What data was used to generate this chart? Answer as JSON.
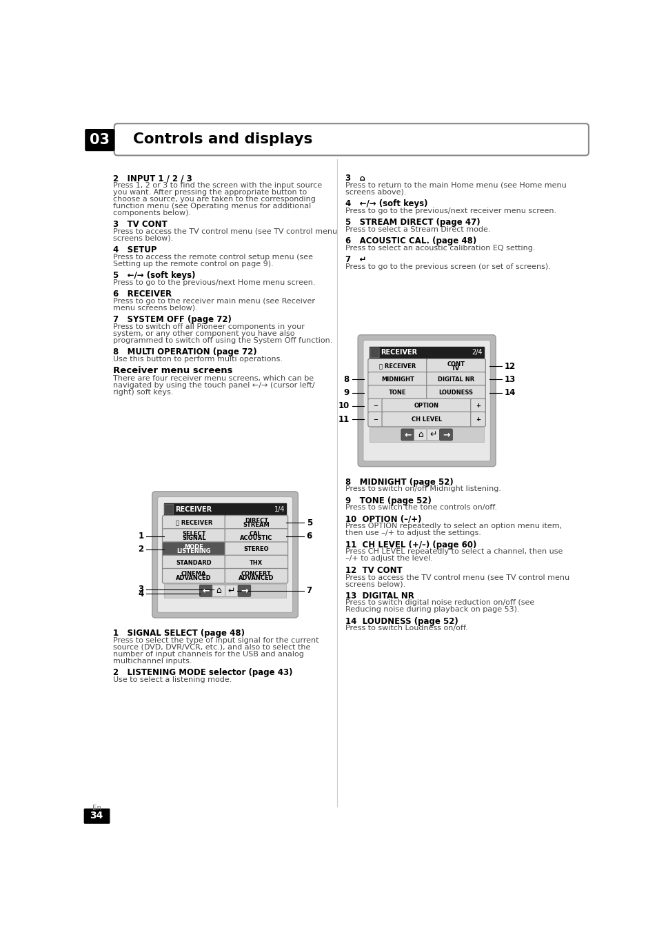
{
  "title": "Controls and displays",
  "chapter": "03",
  "page_num": "34",
  "page_sub": "En",
  "bg_color": "#ffffff",
  "left_items": [
    [
      "h2",
      "2   INPUT 1 / 2 / 3"
    ],
    [
      "body",
      "Press 1, 2 or 3 to find the screen with the input source\nyou want. After pressing the appropriate button to\nchoose a source, you are taken to the corresponding\nfunction menu (see Operating menus for additional\ncomponents below)."
    ],
    [
      "h2",
      "3   TV CONT"
    ],
    [
      "body",
      "Press to access the TV control menu (see TV control menu\nscreens below)."
    ],
    [
      "h2",
      "4   SETUP"
    ],
    [
      "body",
      "Press to access the remote control setup menu (see\nSetting up the remote control on page 9)."
    ],
    [
      "h2",
      "5   ←/→ (soft keys)"
    ],
    [
      "body",
      "Press to go to the previous/next Home menu screen."
    ],
    [
      "h2",
      "6   RECEIVER"
    ],
    [
      "body",
      "Press to go to the receiver main menu (see Receiver\nmenu screens below)."
    ],
    [
      "h2",
      "7   SYSTEM OFF (page 72)"
    ],
    [
      "body",
      "Press to switch off all Pioneer components in your\nsystem, or any other component you have also\nprogrammed to switch off using the System Off function."
    ],
    [
      "h2",
      "8   MULTI OPERATION (page 72)"
    ],
    [
      "body",
      "Use this button to perform multi operations."
    ],
    [
      "sub",
      "Receiver menu screens"
    ],
    [
      "body",
      "There are four receiver menu screens, which can be\nnavigated by using the touch panel ←/→ (cursor left/\nright) soft keys."
    ]
  ],
  "right_items": [
    [
      "h2",
      "3   ⌂"
    ],
    [
      "body",
      "Press to return to the main Home menu (see Home menu\nscreens above)."
    ],
    [
      "h2",
      "4   ←/→ (soft keys)"
    ],
    [
      "body",
      "Press to go to the previous/next receiver menu screen."
    ],
    [
      "h2",
      "5   STREAM DIRECT (page 47)"
    ],
    [
      "body",
      "Press to select a Stream Direct mode."
    ],
    [
      "h2",
      "6   ACOUSTIC CAL. (page 48)"
    ],
    [
      "body",
      "Press to select an acoustic calibration EQ setting."
    ],
    [
      "h2",
      "7   ↵"
    ],
    [
      "body",
      "Press to go to the previous screen (or set of screens)."
    ]
  ],
  "bottom_left_items": [
    [
      "h2",
      "1   SIGNAL SELECT (page 48)"
    ],
    [
      "body",
      "Press to select the type of input signal for the current\nsource (DVD, DVR/VCR, etc.), and also to select the\nnumber of input channels for the USB and analog\nmultichannel inputs."
    ],
    [
      "h2",
      "2   LISTENING MODE selector (page 43)"
    ],
    [
      "body",
      "Use to select a listening mode."
    ]
  ],
  "bottom_right_items": [
    [
      "h2",
      "8   MIDNIGHT (page 52)"
    ],
    [
      "body",
      "Press to switch on/off Midnight listening."
    ],
    [
      "h2",
      "9   TONE (page 52)"
    ],
    [
      "body",
      "Press to switch the tone controls on/off."
    ],
    [
      "h2",
      "10  OPTION (–/+)"
    ],
    [
      "body",
      "Press OPTION repeatedly to select an option menu item,\nthen use –/+ to adjust the settings."
    ],
    [
      "h2",
      "11  CH LEVEL (+/–) (page 60)"
    ],
    [
      "body",
      "Press CH LEVEL repeatedly to select a channel, then use\n–/+ to adjust the level."
    ],
    [
      "h2",
      "12  TV CONT"
    ],
    [
      "body",
      "Press to access the TV control menu (see TV control menu\nscreens below)."
    ],
    [
      "h2",
      "13  DIGITAL NR"
    ],
    [
      "body",
      "Press to switch digital noise reduction on/off (see\nReducing noise during playback on page 53)."
    ],
    [
      "h2",
      "14  LOUDNESS (page 52)"
    ],
    [
      "body",
      "Press to switch Loudness on/off."
    ]
  ]
}
